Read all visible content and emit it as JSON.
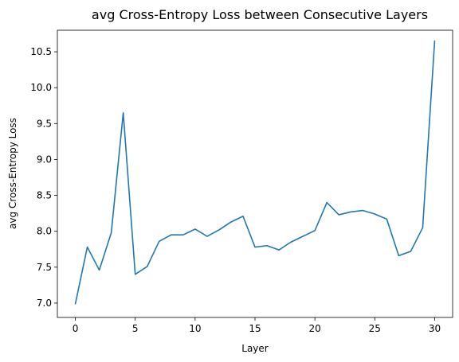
{
  "chart_data": {
    "type": "line",
    "title": "avg Cross-Entropy Loss between Consecutive Layers",
    "xlabel": "Layer",
    "ylabel": "avg Cross-Entropy Loss",
    "xlim": [
      -1.5,
      31.5
    ],
    "ylim": [
      6.8,
      10.8
    ],
    "xticks": [
      0,
      5,
      10,
      15,
      20,
      25,
      30
    ],
    "yticks": [
      7.0,
      7.5,
      8.0,
      8.5,
      9.0,
      9.5,
      10.0,
      10.5
    ],
    "ytick_labels": [
      "7.0",
      "7.5",
      "8.0",
      "8.5",
      "9.0",
      "9.5",
      "10.0",
      "10.5"
    ],
    "xtick_labels": [
      "0",
      "5",
      "10",
      "15",
      "20",
      "25",
      "30"
    ],
    "grid": false,
    "series": [
      {
        "color": "#1f77b4",
        "x": [
          0,
          1,
          2,
          3,
          4,
          5,
          6,
          7,
          8,
          9,
          10,
          11,
          12,
          13,
          14,
          15,
          16,
          17,
          18,
          19,
          20,
          21,
          22,
          23,
          24,
          25,
          26,
          27,
          28,
          29,
          30
        ],
        "y": [
          6.99,
          7.78,
          7.46,
          7.98,
          9.65,
          7.4,
          7.51,
          7.86,
          7.95,
          7.95,
          8.03,
          7.93,
          8.02,
          8.13,
          8.21,
          7.78,
          7.8,
          7.74,
          7.85,
          7.93,
          8.01,
          8.4,
          8.23,
          8.27,
          8.29,
          8.24,
          8.17,
          7.66,
          7.72,
          8.05,
          10.65
        ]
      }
    ]
  }
}
